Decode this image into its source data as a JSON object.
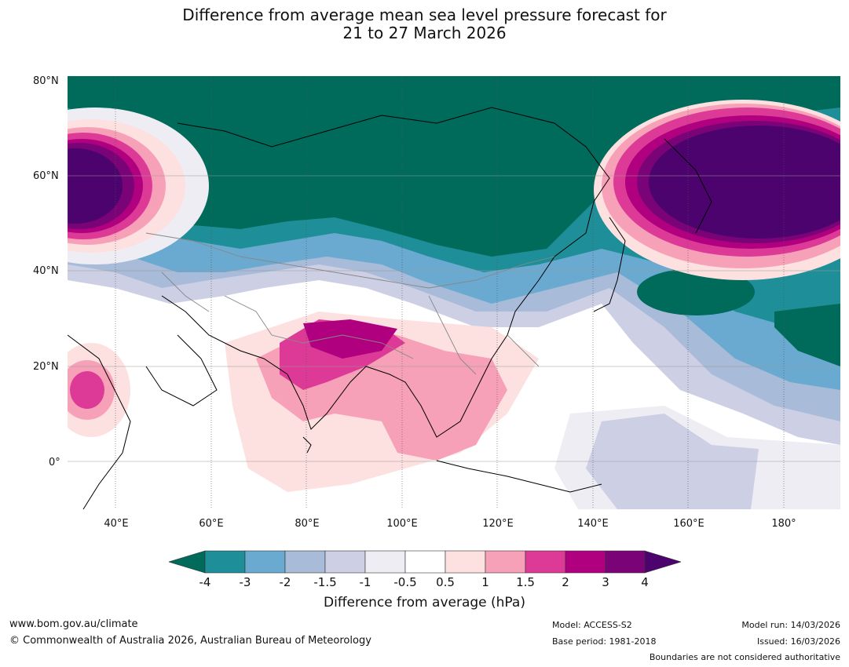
{
  "title": {
    "line1": "Difference from average mean sea level pressure forecast for",
    "line2": "21 to 27 March 2026"
  },
  "map": {
    "lat_labels": [
      "80°N",
      "60°N",
      "40°N",
      "20°N",
      "0°"
    ],
    "lon_labels": [
      "40°E",
      "60°E",
      "80°E",
      "100°E",
      "120°E",
      "140°E",
      "160°E",
      "180°"
    ]
  },
  "colorbar": {
    "title": "Difference from average (hPa)",
    "ticks": [
      "-4",
      "-3",
      "-2",
      "-1.5",
      "-1",
      "-0.5",
      "0.5",
      "1",
      "1.5",
      "2",
      "3",
      "4"
    ],
    "colors": {
      "below_-4": "#006b5a",
      "-4_-3": "#1e8f98",
      "-3_-2": "#6aaad0",
      "-2_-1.5": "#a8bbd8",
      "-1.5_-1": "#cdd0e4",
      "-1_-0.5": "#efedf4",
      "-0.5_0.5": "#ffffff",
      "0.5_1": "#fde0e0",
      "1_1.5": "#f7a1b9",
      "1.5_2": "#dd3a97",
      "2_3": "#b0007f",
      "3_4": "#7a0378",
      "above_4": "#4c036e"
    }
  },
  "footer": {
    "website": "www.bom.gov.au/climate",
    "copyright": "© Commonwealth of Australia 2026, Australian Bureau of Meteorology",
    "model": "Model: ACCESS-S2",
    "base_period": "Base period: 1981-2018",
    "model_run": "Model run: 14/03/2026",
    "issued": "Issued: 16/03/2026",
    "disclaimer": "Boundaries are not considered authoritative"
  }
}
